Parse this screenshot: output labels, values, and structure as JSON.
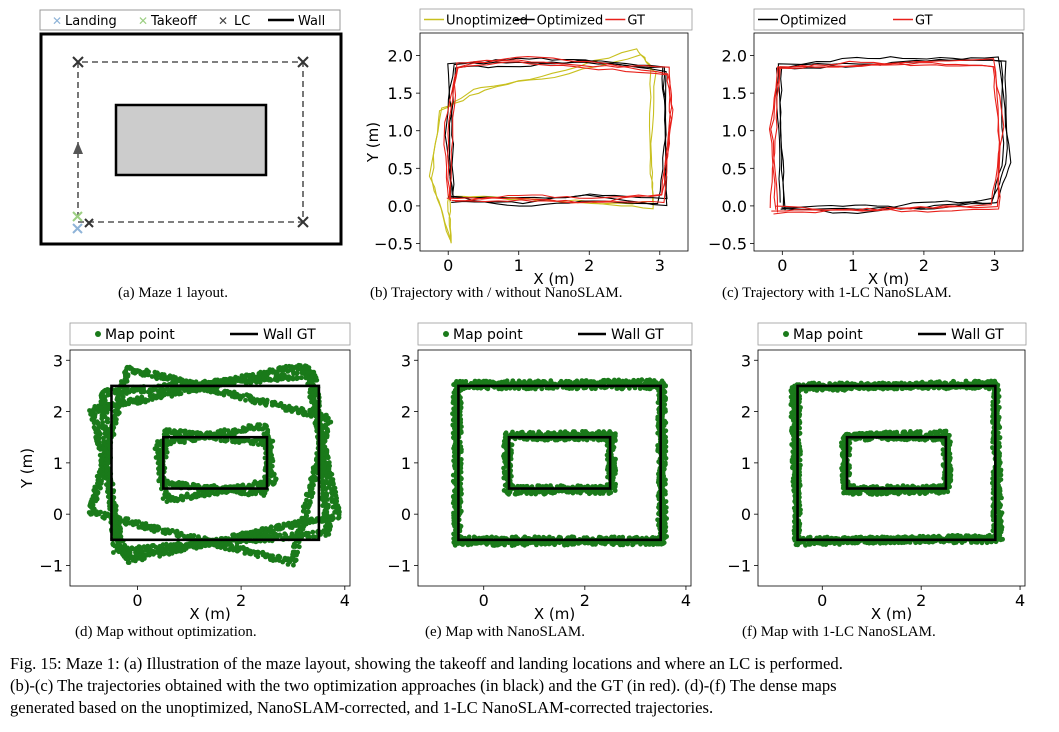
{
  "panel_a": {
    "legend": {
      "landing": "Landing",
      "takeoff": "Takeoff",
      "lc": "LC",
      "wall": "Wall"
    },
    "caption": "(a) Maze 1 layout.",
    "colors": {
      "landing": "#8fb4d8",
      "takeoff": "#9ccf82",
      "lc": "#444444",
      "obstacle": "#cccccc"
    }
  },
  "panel_b": {
    "caption": "(b) Trajectory with / without NanoSLAM."
  },
  "panel_c": {
    "caption": "(c) Trajectory with 1-LC NanoSLAM."
  },
  "panel_d": {
    "caption": "(d) Map without optimization."
  },
  "panel_e": {
    "caption": "(e) Map with NanoSLAM."
  },
  "panel_f": {
    "caption": "(f) Map with 1-LC NanoSLAM."
  },
  "figure_caption": {
    "line1": "Fig. 15: Maze 1: (a) Illustration of the maze layout, showing the takeoff and landing locations and where an LC is performed.",
    "line2": "(b)-(c) The trajectories obtained with the two optimization approaches (in black) and the GT (in red). (d)-(f) The dense maps",
    "line3": "generated based on the unoptimized, NanoSLAM-corrected, and 1-LC NanoSLAM-corrected trajectories."
  },
  "chart_data": [
    {
      "type": "line",
      "panel": "b",
      "xlabel": "X (m)",
      "ylabel": "Y (m)",
      "xlim": [
        -0.4,
        3.4
      ],
      "ylim": [
        -0.6,
        2.3
      ],
      "xticks": [
        0,
        1,
        2,
        3
      ],
      "yticks": [
        -0.5,
        0.0,
        0.5,
        1.0,
        1.5,
        2.0
      ],
      "xtick_labels": [
        "0",
        "1",
        "2",
        "3"
      ],
      "ytick_labels": [
        "−0.5",
        "0.0",
        "0.5",
        "1.0",
        "1.5",
        "2.0"
      ],
      "legend": [
        "Unoptimized",
        "Optimized",
        "GT"
      ],
      "series": [
        {
          "name": "Unoptimized",
          "color": "#c8c01f",
          "x": [
            0.05,
            0.9,
            2.0,
            2.95,
            2.85,
            2.9,
            2.7,
            1.5,
            0.5,
            -0.15,
            -0.2,
            0.0,
            0.05
          ],
          "y": [
            0.15,
            0.05,
            0.0,
            0.0,
            0.6,
            1.8,
            2.05,
            1.75,
            1.55,
            1.25,
            0.4,
            -0.45,
            0.15
          ]
        },
        {
          "name": "Optimized",
          "color": "#000000",
          "x": [
            0.05,
            1.0,
            2.0,
            3.05,
            3.1,
            3.05,
            2.0,
            1.0,
            0.05,
            0.0,
            0.05
          ],
          "y": [
            0.1,
            0.05,
            0.1,
            0.05,
            1.0,
            1.85,
            1.9,
            1.92,
            1.9,
            1.0,
            0.1
          ]
        },
        {
          "name": "GT",
          "color": "#e8201a",
          "x": [
            0.05,
            1.0,
            2.0,
            3.0,
            3.15,
            3.1,
            2.0,
            1.0,
            0.1,
            0.0,
            0.05
          ],
          "y": [
            0.1,
            0.12,
            0.08,
            0.1,
            1.2,
            1.8,
            1.88,
            1.95,
            1.9,
            1.0,
            0.1
          ]
        }
      ]
    },
    {
      "type": "line",
      "panel": "c",
      "xlabel": "X (m)",
      "ylabel": "",
      "xlim": [
        -0.4,
        3.4
      ],
      "ylim": [
        -0.6,
        2.3
      ],
      "xticks": [
        0,
        1,
        2,
        3
      ],
      "yticks": [
        -0.5,
        0.0,
        0.5,
        1.0,
        1.5,
        2.0
      ],
      "xtick_labels": [
        "0",
        "1",
        "2",
        "3"
      ],
      "ytick_labels": [
        "−0.5",
        "0.0",
        "0.5",
        "1.0",
        "1.5",
        "2.0"
      ],
      "legend": [
        "Optimized",
        "GT"
      ],
      "series": [
        {
          "name": "Optimized",
          "color": "#000000",
          "x": [
            0.0,
            1.0,
            2.0,
            3.0,
            3.15,
            3.1,
            2.0,
            1.0,
            -0.05,
            -0.05,
            0.0
          ],
          "y": [
            0.0,
            -0.05,
            0.0,
            0.05,
            0.6,
            1.95,
            1.95,
            1.92,
            1.85,
            1.0,
            0.0
          ]
        },
        {
          "name": "GT",
          "color": "#e8201a",
          "x": [
            -0.1,
            1.0,
            2.0,
            3.0,
            3.05,
            3.0,
            2.0,
            1.0,
            0.0,
            -0.1,
            -0.1
          ],
          "y": [
            -0.05,
            -0.08,
            -0.05,
            0.0,
            1.0,
            1.9,
            1.9,
            1.88,
            1.85,
            1.0,
            -0.05
          ]
        }
      ]
    },
    {
      "type": "scatter",
      "panel": "d",
      "xlabel": "X (m)",
      "ylabel": "Y (m)",
      "xlim": [
        -1.3,
        4.1
      ],
      "ylim": [
        -1.4,
        3.2
      ],
      "xticks": [
        0,
        2,
        4
      ],
      "yticks": [
        -1,
        0,
        1,
        2,
        3
      ],
      "xtick_labels": [
        "0",
        "2",
        "4"
      ],
      "ytick_labels": [
        "−1",
        "0",
        "1",
        "2",
        "3"
      ],
      "legend": [
        "Map point",
        "Wall GT"
      ],
      "walls": [
        [
          [
            -0.5,
            -0.5
          ],
          [
            3.5,
            2.5
          ]
        ],
        [
          [
            0.5,
            0.5
          ],
          [
            2.5,
            1.5
          ]
        ]
      ],
      "map_rects": [
        {
          "cx": 1.5,
          "cy": 1.0,
          "w": 4.2,
          "h": 3.0,
          "rot": 12
        },
        {
          "cx": 1.4,
          "cy": 0.95,
          "w": 4.0,
          "h": 2.9,
          "rot": -14
        },
        {
          "cx": 1.5,
          "cy": 1.0,
          "w": 4.1,
          "h": 3.1,
          "rot": 5
        },
        {
          "cx": 1.5,
          "cy": 1.0,
          "w": 2.1,
          "h": 1.1,
          "rot": 10
        },
        {
          "cx": 1.5,
          "cy": 1.0,
          "w": 2.0,
          "h": 1.0,
          "rot": -6
        }
      ]
    },
    {
      "type": "scatter",
      "panel": "e",
      "xlabel": "X (m)",
      "ylabel": "",
      "xlim": [
        -1.3,
        4.1
      ],
      "ylim": [
        -1.4,
        3.2
      ],
      "xticks": [
        0,
        2,
        4
      ],
      "yticks": [
        -1,
        0,
        1,
        2,
        3
      ],
      "xtick_labels": [
        "0",
        "2",
        "4"
      ],
      "ytick_labels": [
        "−1",
        "0",
        "1",
        "2",
        "3"
      ],
      "legend": [
        "Map point",
        "Wall GT"
      ],
      "walls": [
        [
          [
            -0.5,
            -0.5
          ],
          [
            3.5,
            2.5
          ]
        ],
        [
          [
            0.5,
            0.5
          ],
          [
            2.5,
            1.5
          ]
        ]
      ],
      "map_rects": [
        {
          "cx": 1.5,
          "cy": 1.0,
          "w": 4.0,
          "h": 3.0,
          "rot": 0
        },
        {
          "cx": 1.5,
          "cy": 1.0,
          "w": 4.1,
          "h": 3.1,
          "rot": 0.5
        },
        {
          "cx": 1.5,
          "cy": 1.0,
          "w": 2.0,
          "h": 1.0,
          "rot": 0
        },
        {
          "cx": 1.5,
          "cy": 1.0,
          "w": 2.1,
          "h": 1.1,
          "rot": 0.5
        }
      ]
    },
    {
      "type": "scatter",
      "panel": "f",
      "xlabel": "X (m)",
      "ylabel": "",
      "xlim": [
        -1.3,
        4.1
      ],
      "ylim": [
        -1.4,
        3.2
      ],
      "xticks": [
        0,
        2,
        4
      ],
      "yticks": [
        -1,
        0,
        1,
        2,
        3
      ],
      "xtick_labels": [
        "0",
        "2",
        "4"
      ],
      "ytick_labels": [
        "−1",
        "0",
        "1",
        "2",
        "3"
      ],
      "legend": [
        "Map point",
        "Wall GT"
      ],
      "walls": [
        [
          [
            -0.5,
            -0.5
          ],
          [
            3.5,
            2.5
          ]
        ],
        [
          [
            0.5,
            0.5
          ],
          [
            2.5,
            1.5
          ]
        ]
      ],
      "map_rects": [
        {
          "cx": 1.5,
          "cy": 1.0,
          "w": 4.0,
          "h": 3.0,
          "rot": 0
        },
        {
          "cx": 1.5,
          "cy": 1.0,
          "w": 4.1,
          "h": 3.0,
          "rot": 1.5
        },
        {
          "cx": 1.5,
          "cy": 1.0,
          "w": 2.0,
          "h": 1.0,
          "rot": 0
        },
        {
          "cx": 1.5,
          "cy": 1.0,
          "w": 2.1,
          "h": 1.1,
          "rot": 1
        }
      ]
    }
  ]
}
